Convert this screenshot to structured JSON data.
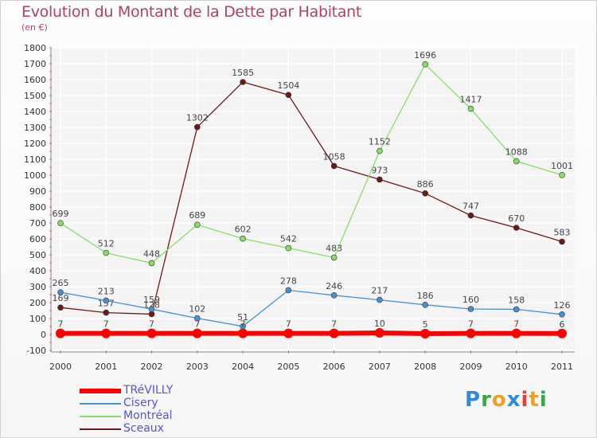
{
  "title": "Evolution du Montant de la Dette par Habitant",
  "subtitle": "(en €)",
  "logo": {
    "letters": [
      "P",
      "r",
      "o",
      "x",
      "i",
      "t",
      "i"
    ],
    "colors": [
      "#2f8ad8",
      "#3aa64a",
      "#f0a020",
      "#2f8ad8",
      "#e04040",
      "#f0a020",
      "#3aa64a"
    ]
  },
  "chart_data": {
    "type": "line",
    "x": [
      "2000",
      "2001",
      "2002",
      "2003",
      "2004",
      "2005",
      "2006",
      "2007",
      "2008",
      "2009",
      "2010",
      "2011"
    ],
    "ylim": [
      -100,
      1800
    ],
    "yticks": [
      -100,
      0,
      100,
      200,
      300,
      400,
      500,
      600,
      700,
      800,
      900,
      1000,
      1100,
      1200,
      1300,
      1400,
      1500,
      1600,
      1700,
      1800
    ],
    "grid": true,
    "legend_position": "bottom-left",
    "series": [
      {
        "name": "TRéVILLY",
        "color": "#ff0000",
        "values": [
          7,
          7,
          7,
          7,
          7,
          7,
          7,
          10,
          5,
          7,
          7,
          6
        ],
        "labels": [
          "7",
          "7",
          "7",
          "7",
          "7",
          "7",
          "7",
          "10",
          "5",
          "7",
          "7",
          "6"
        ]
      },
      {
        "name": "Cisery",
        "color": "#4a90d0",
        "values": [
          265,
          213,
          159,
          102,
          51,
          278,
          246,
          217,
          186,
          160,
          158,
          126
        ],
        "labels": [
          "265",
          "213",
          "159",
          "102",
          "51",
          "278",
          "246",
          "217",
          "186",
          "160",
          "158",
          "126"
        ]
      },
      {
        "name": "Montréal",
        "color": "#88dd66",
        "values": [
          699,
          512,
          448,
          689,
          602,
          542,
          483,
          1152,
          1696,
          1417,
          1088,
          1001
        ],
        "labels": [
          "699",
          "512",
          "448",
          "689",
          "602",
          "542",
          "483",
          "1152",
          "1696",
          "1417",
          "1088",
          "1001"
        ]
      },
      {
        "name": "Sceaux",
        "color": "#6b1a1a",
        "values": [
          169,
          137,
          128,
          1302,
          1585,
          1504,
          1058,
          973,
          886,
          747,
          670,
          583
        ],
        "labels": [
          "169",
          "137",
          "128",
          "1302",
          "1585",
          "1504",
          "1058",
          "973",
          "886",
          "747",
          "670",
          "583"
        ]
      }
    ]
  }
}
